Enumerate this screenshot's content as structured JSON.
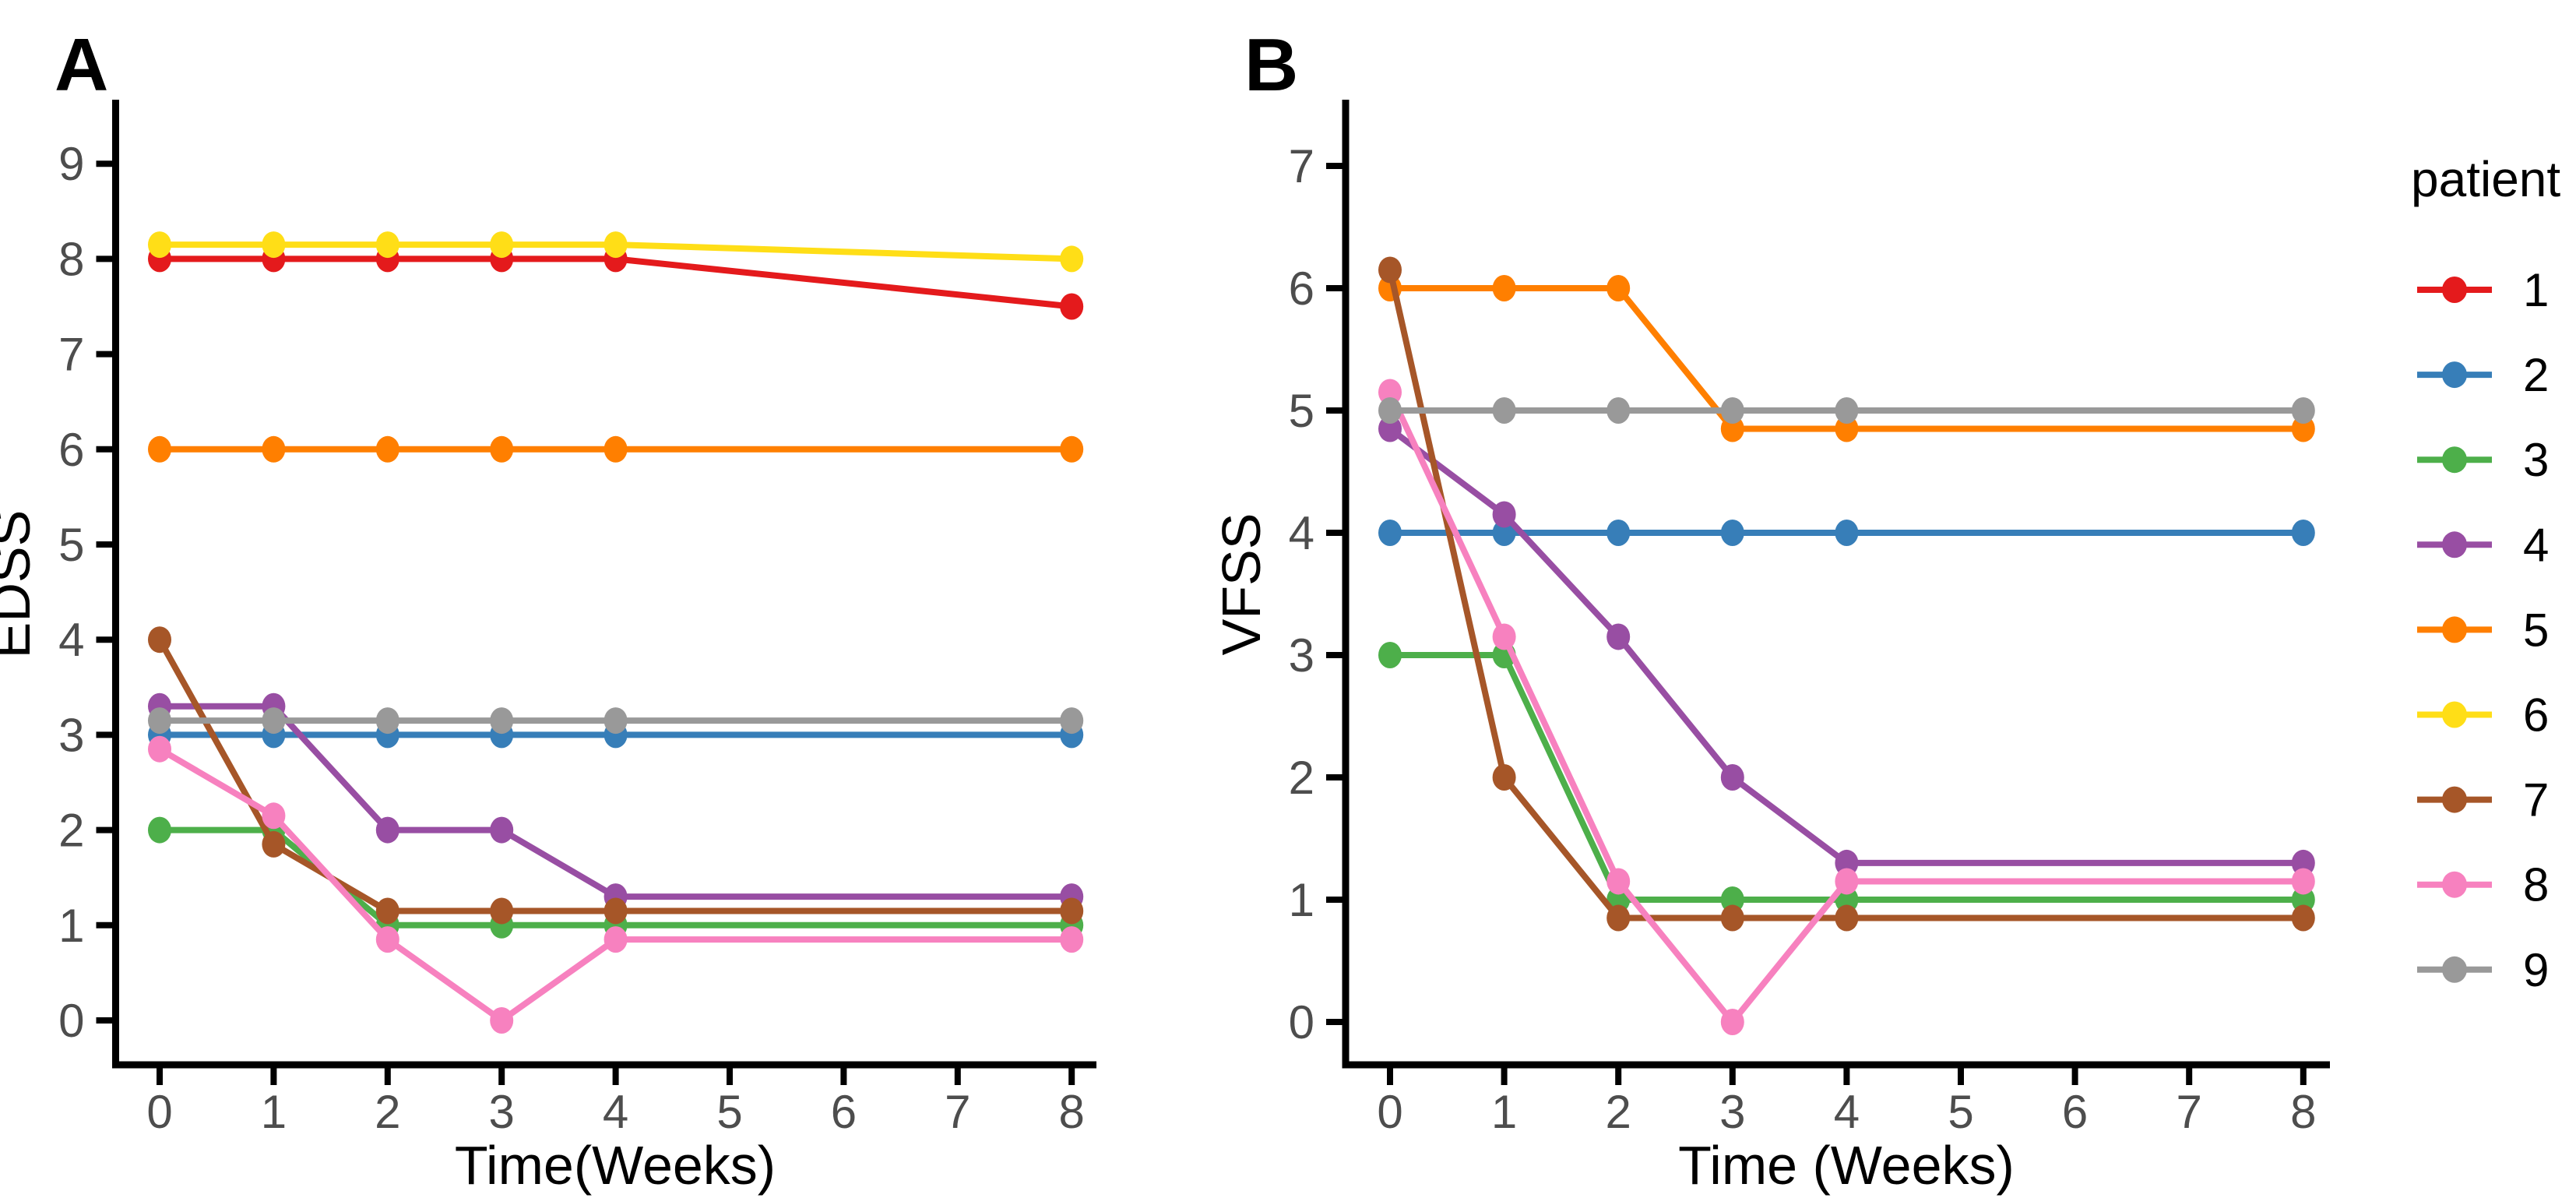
{
  "figure": {
    "background": "#ffffff",
    "tick_label_color": "#4d4d4d",
    "axis_color": "#000000"
  },
  "legend": {
    "title": "patient",
    "entries": [
      {
        "label": "1",
        "color": "#E41A1C"
      },
      {
        "label": "2",
        "color": "#377EB8"
      },
      {
        "label": "3",
        "color": "#4DAF4A"
      },
      {
        "label": "4",
        "color": "#984EA3"
      },
      {
        "label": "5",
        "color": "#FF7F00"
      },
      {
        "label": "6",
        "color": "#FFDE17"
      },
      {
        "label": "7",
        "color": "#A65628"
      },
      {
        "label": "8",
        "color": "#F781BF"
      },
      {
        "label": "9",
        "color": "#999999"
      }
    ]
  },
  "chart_data": [
    {
      "type": "line",
      "panel_label": "A",
      "xlabel": "Time(Weeks)",
      "ylabel": "EDSS",
      "x_weeks": [
        0,
        1,
        2,
        3,
        4,
        8
      ],
      "x_ticks": [
        0,
        1,
        2,
        3,
        4,
        5,
        6,
        7,
        8
      ],
      "y_ticks": [
        0,
        1,
        2,
        3,
        4,
        5,
        6,
        7,
        8,
        9
      ],
      "xlim": [
        0,
        8
      ],
      "ylim": [
        0,
        9.6
      ],
      "grid": false,
      "legend_position": "right",
      "series": [
        {
          "name": "1",
          "color": "#E41A1C",
          "values": [
            8,
            8,
            8,
            8,
            8,
            7.5
          ]
        },
        {
          "name": "2",
          "color": "#377EB8",
          "values": [
            3,
            3,
            3,
            3,
            3,
            3
          ]
        },
        {
          "name": "3",
          "color": "#4DAF4A",
          "values": [
            2,
            2,
            1,
            1,
            1,
            1
          ]
        },
        {
          "name": "4",
          "color": "#984EA3",
          "values": [
            3.3,
            3.3,
            2,
            2,
            1.3,
            1.3
          ]
        },
        {
          "name": "5",
          "color": "#FF7F00",
          "values": [
            6,
            6,
            6,
            6,
            6,
            6
          ]
        },
        {
          "name": "6",
          "color": "#FFDE17",
          "values": [
            8.15,
            8.15,
            8.15,
            8.15,
            8.15,
            8
          ]
        },
        {
          "name": "7",
          "color": "#A65628",
          "values": [
            4,
            1.85,
            1.15,
            1.15,
            1.15,
            1.15
          ]
        },
        {
          "name": "8",
          "color": "#F781BF",
          "values": [
            2.85,
            2.15,
            0.85,
            0,
            0.85,
            0.85
          ]
        },
        {
          "name": "9",
          "color": "#999999",
          "values": [
            3.15,
            3.15,
            3.15,
            3.15,
            3.15,
            3.15
          ]
        }
      ]
    },
    {
      "type": "line",
      "panel_label": "B",
      "xlabel": "Time (Weeks)",
      "ylabel": "VFSS",
      "x_weeks": [
        0,
        1,
        2,
        3,
        4,
        8
      ],
      "x_ticks": [
        0,
        1,
        2,
        3,
        4,
        5,
        6,
        7,
        8
      ],
      "y_ticks": [
        0,
        1,
        2,
        3,
        4,
        5,
        6,
        7
      ],
      "xlim": [
        0,
        8
      ],
      "ylim": [
        0,
        7.5
      ],
      "grid": false,
      "legend_position": "right",
      "series": [
        {
          "name": "2",
          "color": "#377EB8",
          "values": [
            4,
            4,
            4,
            4,
            4,
            4
          ]
        },
        {
          "name": "3",
          "color": "#4DAF4A",
          "values": [
            3,
            3,
            1,
            1,
            1,
            1
          ]
        },
        {
          "name": "4",
          "color": "#984EA3",
          "values": [
            4.85,
            4.15,
            3.15,
            2,
            1.3,
            1.3
          ]
        },
        {
          "name": "5",
          "color": "#FF7F00",
          "values": [
            6,
            6,
            6,
            4.85,
            4.85,
            4.85
          ]
        },
        {
          "name": "7",
          "color": "#A65628",
          "values": [
            6.15,
            2,
            0.85,
            0.85,
            0.85,
            0.85
          ]
        },
        {
          "name": "8",
          "color": "#F781BF",
          "values": [
            5.15,
            3.15,
            1.15,
            0,
            1.15,
            1.15
          ]
        },
        {
          "name": "9",
          "color": "#999999",
          "values": [
            5,
            5,
            5,
            5,
            5,
            5
          ]
        }
      ]
    }
  ]
}
